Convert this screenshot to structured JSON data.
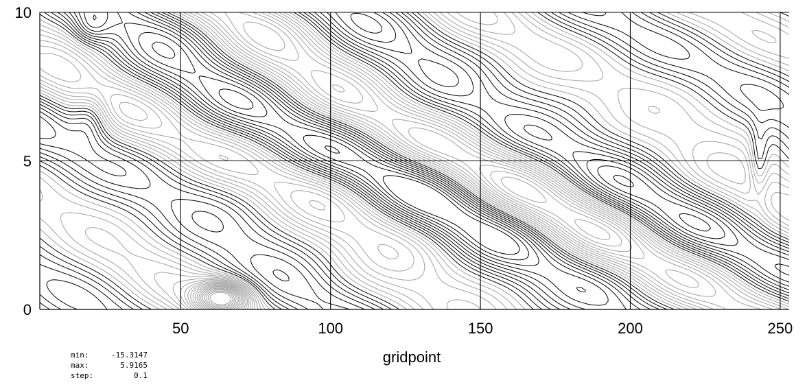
{
  "chart_data": {
    "type": "contour",
    "xlabel": "gridpoint",
    "ylabel": "",
    "title": "",
    "xlim": [
      3,
      253
    ],
    "ylim": [
      0,
      10
    ],
    "x_ticks": [
      50,
      100,
      150,
      200,
      250
    ],
    "y_ticks": [
      0,
      5,
      10
    ],
    "x_tick_labels": [
      "50",
      "100",
      "150",
      "200",
      "250"
    ],
    "y_tick_labels": [
      "0",
      "5",
      "10"
    ],
    "grid": true,
    "min": -15.3147,
    "max": 5.9165,
    "step": 0.1,
    "line_colors": {
      "positive": "#000000",
      "negative": "#a0a0a0"
    }
  },
  "stats": [
    {
      "key": "min:",
      "value": "-15.3147"
    },
    {
      "key": "max:",
      "value": "5.9165"
    },
    {
      "key": "step:",
      "value": "0.1"
    }
  ]
}
